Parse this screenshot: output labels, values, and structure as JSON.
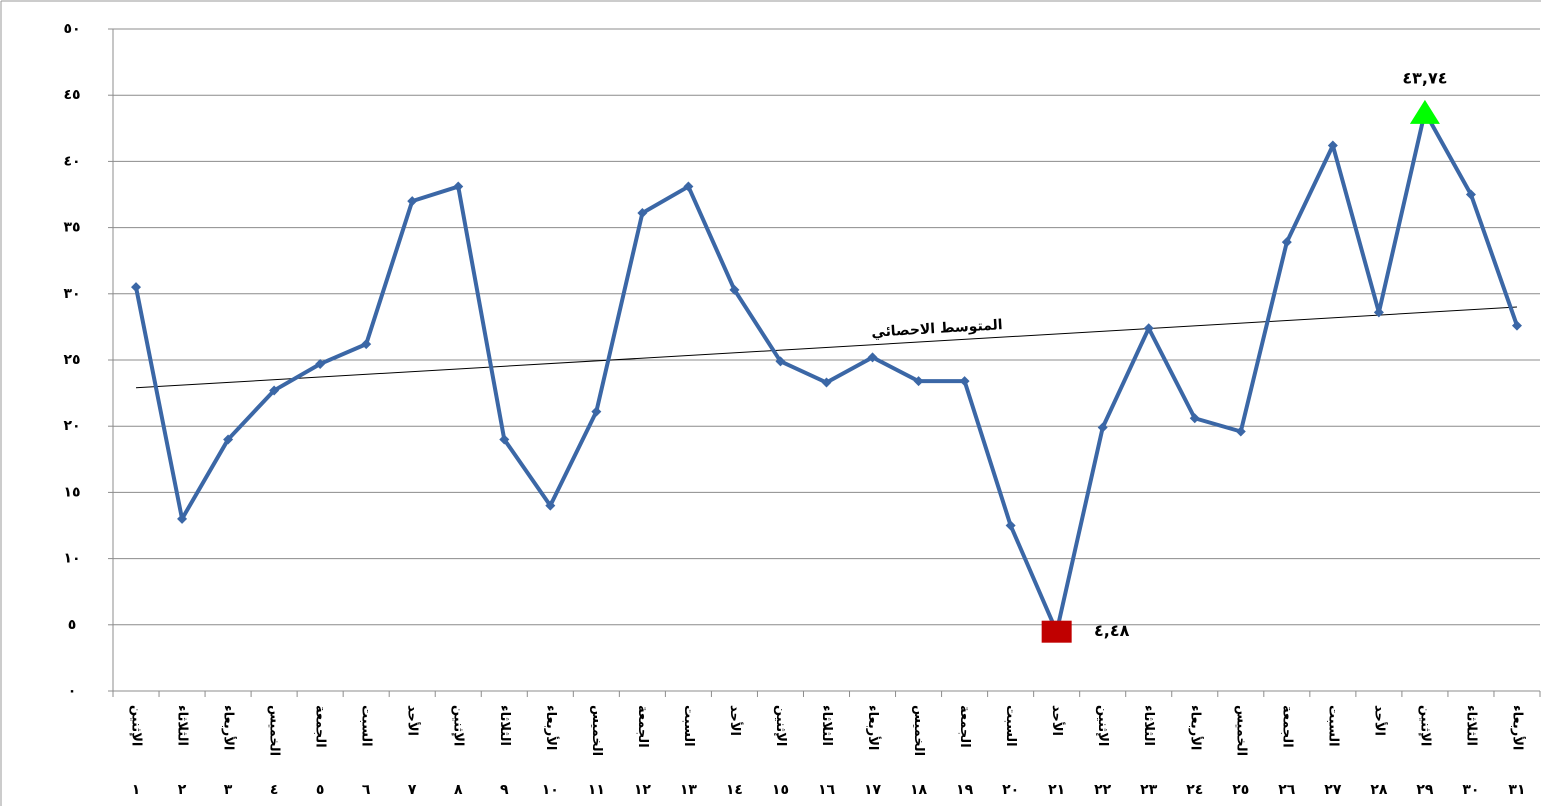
{
  "chart_data": {
    "type": "line",
    "categories": [
      "الإثنين",
      "الثلاثاء",
      "الأربعاء",
      "الخميس",
      "الجمعة",
      "السبت",
      "الأحد",
      "الإثنين",
      "الثلاثاء",
      "الأربعاء",
      "الخميس",
      "الجمعة",
      "السبت",
      "الأحد",
      "الإثنين",
      "الثلاثاء",
      "الأربعاء",
      "الخميس",
      "الجمعة",
      "السبت",
      "الأحد",
      "الإثنين",
      "الثلاثاء",
      "الأربعاء",
      "الخميس",
      "الجمعة",
      "السبت",
      "الأحد",
      "الإثنين",
      "الثلاثاء",
      "الأربعاء"
    ],
    "day_numbers": [
      "١",
      "٢",
      "٣",
      "٤",
      "٥",
      "٦",
      "٧",
      "٨",
      "٩",
      "١٠",
      "١١",
      "١٢",
      "١٣",
      "١٤",
      "١٥",
      "١٦",
      "١٧",
      "١٨",
      "١٩",
      "٢٠",
      "٢١",
      "٢٢",
      "٢٣",
      "٢٤",
      "٢٥",
      "٢٦",
      "٢٧",
      "٢٨",
      "٢٩",
      "٣٠",
      "٣١"
    ],
    "series": [
      {
        "color": "#3b67a6",
        "values": [
          30.5,
          13.0,
          19.0,
          22.7,
          24.7,
          26.2,
          37.0,
          38.1,
          19.0,
          14.0,
          21.1,
          36.1,
          38.1,
          30.3,
          24.9,
          23.3,
          25.2,
          23.4,
          23.4,
          12.5,
          4.48,
          19.9,
          27.4,
          20.6,
          19.6,
          33.9,
          41.2,
          28.6,
          43.74,
          37.5,
          27.6
        ],
        "value_labels": [
          null,
          null,
          null,
          null,
          null,
          null,
          null,
          null,
          null,
          null,
          null,
          null,
          null,
          null,
          null,
          null,
          null,
          null,
          null,
          null,
          "٤,٤٨",
          null,
          null,
          null,
          null,
          null,
          null,
          null,
          "٤٣,٧٤",
          null,
          null
        ]
      }
    ],
    "min_color": "#c00000",
    "max_color": "#00ff00",
    "trendline": {
      "label": "المتوسط الاحصائي",
      "values": [
        22.9,
        29.0
      ],
      "color": "#000000"
    },
    "ylim": [
      0,
      50
    ],
    "yticks": [
      {
        "value": 0,
        "label": "٠"
      },
      {
        "value": 5,
        "label": "٥"
      },
      {
        "value": 10,
        "label": "١٠"
      },
      {
        "value": 15,
        "label": "١٥"
      },
      {
        "value": 20,
        "label": "٢٠"
      },
      {
        "value": 25,
        "label": "٢٥"
      },
      {
        "value": 30,
        "label": "٣٠"
      },
      {
        "value": 35,
        "label": "٣٥"
      },
      {
        "value": 40,
        "label": "٤٠"
      },
      {
        "value": 45,
        "label": "٤٥"
      },
      {
        "value": 50,
        "label": "٥٠"
      }
    ],
    "grid": true
  }
}
